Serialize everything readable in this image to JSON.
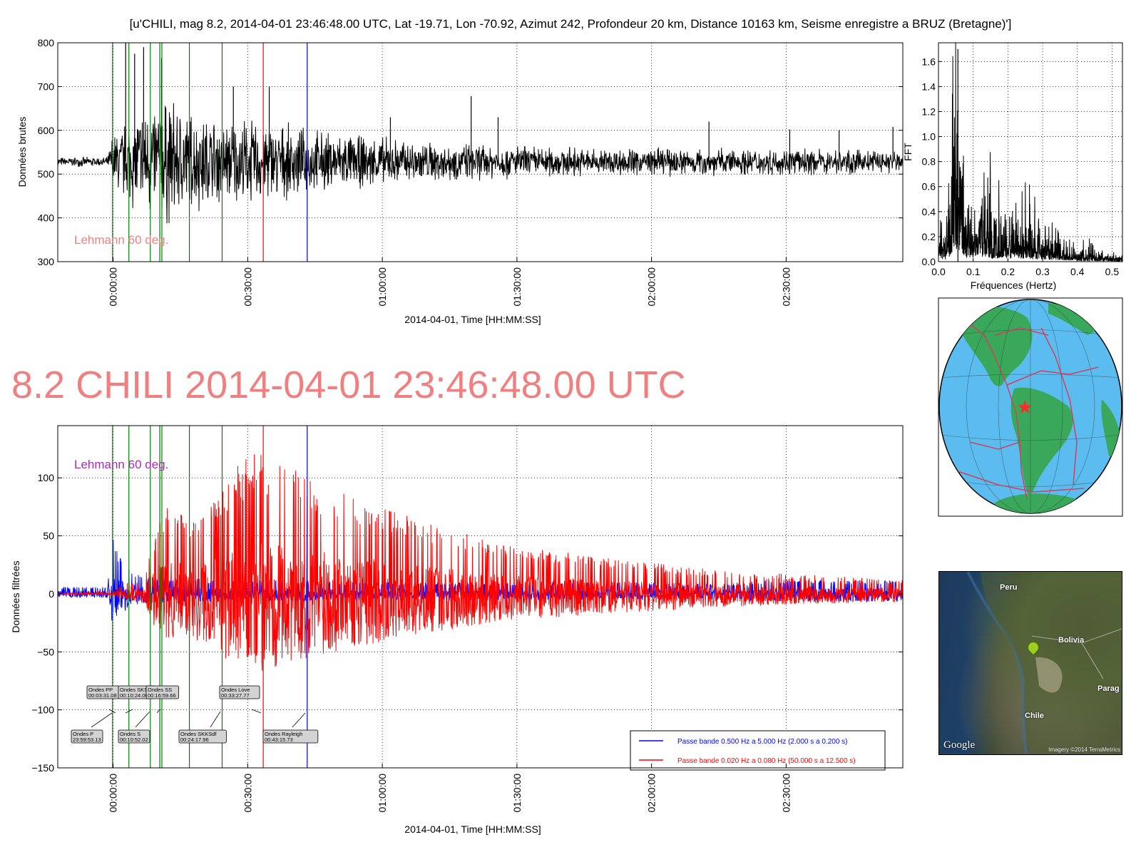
{
  "figure_title": "[u'CHILI, mag 8.2, 2014-04-01 23:46:48.00 UTC, Lat -19.71, Lon -70.92, Azimut 242, Profondeur 20 km, Distance 10163 km, Seisme enregistre a BRUZ (Bretagne)']",
  "big_title": "8.2 CHILI 2014-04-01 23:46:48.00 UTC",
  "colors": {
    "raw_trace": "#000000",
    "arrival_green": "#008000",
    "arrival_red": "#ff0000",
    "arrival_blue": "#0000ff",
    "series_blue": "#0000ff",
    "series_red": "#ff0000",
    "lehmann_top": "#f08080",
    "lehmann_bottom": "#a030b0",
    "big_title": "#f08080",
    "ocean": "#5bbcf0",
    "land": "#3aa85a",
    "plates": "#d04060"
  },
  "chart_data": [
    {
      "id": "raw",
      "type": "line",
      "ylabel": "Données brutes",
      "xlabel": "2014-04-01, Time [HH:MM:SS]",
      "x_unit": "minutes after 2014-04-01 23:46:48 UTC",
      "xlim_time": [
        "23:47:40",
        "02:56:00"
      ],
      "ylim": [
        300,
        800
      ],
      "yticks": [
        300,
        400,
        500,
        600,
        700,
        800
      ],
      "xticks": [
        "00:00:00",
        "00:30:00",
        "01:00:00",
        "01:30:00",
        "02:00:00",
        "02:30:00"
      ],
      "grid": true,
      "annotation": "Lehmann 60 deg.",
      "baseline": 528,
      "envelope": [
        [
          0,
          10
        ],
        [
          12,
          10
        ],
        [
          13,
          60
        ],
        [
          20,
          120
        ],
        [
          25,
          140
        ],
        [
          30,
          110
        ],
        [
          38,
          90
        ],
        [
          45,
          90
        ],
        [
          55,
          70
        ],
        [
          70,
          55
        ],
        [
          90,
          40
        ],
        [
          105,
          35
        ],
        [
          120,
          30
        ],
        [
          140,
          30
        ],
        [
          160,
          28
        ],
        [
          190,
          25
        ]
      ],
      "spikes": [
        [
          16,
          800
        ],
        [
          18,
          775
        ],
        [
          20,
          790
        ],
        [
          24,
          765
        ],
        [
          40,
          700
        ],
        [
          48,
          700
        ],
        [
          75,
          630
        ],
        [
          93,
          678
        ],
        [
          99,
          630
        ],
        [
          146,
          620
        ],
        [
          164,
          602
        ],
        [
          175,
          600
        ],
        [
          187,
          608
        ]
      ]
    },
    {
      "id": "fft",
      "type": "line",
      "ylabel": "FFT",
      "xlabel": "Fréquences (Hertz)",
      "xlim": [
        0,
        0.53
      ],
      "ylim": [
        0,
        1.75
      ],
      "xticks": [
        0.0,
        0.1,
        0.2,
        0.3,
        0.4,
        0.5
      ],
      "yticks": [
        0.0,
        0.2,
        0.4,
        0.6,
        0.8,
        1.0,
        1.2,
        1.4,
        1.6
      ],
      "grid": true,
      "peaks": [
        [
          0.02,
          0.35
        ],
        [
          0.035,
          0.9
        ],
        [
          0.05,
          1.6
        ],
        [
          0.056,
          1.7
        ],
        [
          0.065,
          1.3
        ],
        [
          0.08,
          0.55
        ],
        [
          0.1,
          0.45
        ],
        [
          0.13,
          0.75
        ],
        [
          0.16,
          0.45
        ],
        [
          0.2,
          0.5
        ],
        [
          0.23,
          0.52
        ],
        [
          0.26,
          0.42
        ],
        [
          0.3,
          0.3
        ],
        [
          0.35,
          0.2
        ],
        [
          0.4,
          0.15
        ],
        [
          0.45,
          0.09
        ],
        [
          0.5,
          0.06
        ],
        [
          0.53,
          0.05
        ]
      ]
    },
    {
      "id": "filtered",
      "type": "line",
      "ylabel": "Données filtrées",
      "xlabel": "2014-04-01, Time [HH:MM:SS]",
      "x_unit": "minutes after 2014-04-01 23:46:48 UTC",
      "xlim_time": [
        "23:47:40",
        "02:56:00"
      ],
      "ylim": [
        -150,
        145
      ],
      "yticks": [
        -150,
        -100,
        -50,
        0,
        50,
        100
      ],
      "xticks": [
        "00:00:00",
        "00:30:00",
        "01:00:00",
        "01:30:00",
        "02:00:00",
        "02:30:00"
      ],
      "grid": true,
      "annotation": "Lehmann 60 deg.",
      "series": [
        {
          "name": "Passe bande 0.500 Hz a 5.000 Hz (2.000 s a 0.200 s)",
          "color": "#0000ff",
          "envelope": [
            [
              0,
              6
            ],
            [
              12,
              6
            ],
            [
              13,
              50
            ],
            [
              15,
              30
            ],
            [
              20,
              15
            ],
            [
              40,
              12
            ],
            [
              80,
              10
            ],
            [
              120,
              10
            ],
            [
              150,
              9
            ],
            [
              160,
              12
            ],
            [
              190,
              12
            ]
          ]
        },
        {
          "name": "Passe bande 0.020 Hz a 0.080 Hz (50.000 s a 12.500 s)",
          "color": "#ff0000",
          "envelope": [
            [
              0,
              1
            ],
            [
              12,
              2
            ],
            [
              14,
              6
            ],
            [
              20,
              15
            ],
            [
              24,
              75
            ],
            [
              30,
              70
            ],
            [
              36,
              80
            ],
            [
              38,
              100
            ],
            [
              45,
              125
            ],
            [
              52,
              110
            ],
            [
              60,
              95
            ],
            [
              70,
              80
            ],
            [
              80,
              65
            ],
            [
              90,
              55
            ],
            [
              100,
              42
            ],
            [
              110,
              38
            ],
            [
              130,
              28
            ],
            [
              150,
              20
            ],
            [
              175,
              15
            ],
            [
              190,
              12
            ]
          ]
        }
      ],
      "phases": [
        {
          "label": "Ondes P",
          "time": "23:59:53.13",
          "minutes": 13.08
        },
        {
          "label": "Ondes PP",
          "time": "00:03:31.08",
          "minutes": 16.72
        },
        {
          "label": "Ondes S",
          "time": "00:10:52.02",
          "minutes": 24.07
        },
        {
          "label": "Ondes SKS",
          "time": "00:10:24.00",
          "minutes": 23.6
        },
        {
          "label": "Ondes SS",
          "time": "00:16:59.66",
          "minutes": 30.2
        },
        {
          "label": "Ondes SKKSdf",
          "time": "00:24:17.96",
          "minutes": 37.5
        },
        {
          "label": "Ondes Love",
          "time": "00:33:27.77",
          "minutes": 46.66
        },
        {
          "label": "Ondes Rayleigh",
          "time": "00:43:15.73",
          "minutes": 56.46
        }
      ]
    }
  ],
  "arrival_lines_min": {
    "green": [
      13.08,
      16.72,
      21.5,
      23.6,
      24.07,
      30.2,
      37.5
    ],
    "red": [
      46.66
    ],
    "blue": [
      56.46
    ]
  },
  "globe": {
    "marker": "epicenter-star"
  },
  "map": {
    "labels": [
      "Peru",
      "Bolivia",
      "Chile",
      "Parag"
    ],
    "logo": "Google",
    "imagery": "Imagery ©2014 TerraMetrics"
  }
}
